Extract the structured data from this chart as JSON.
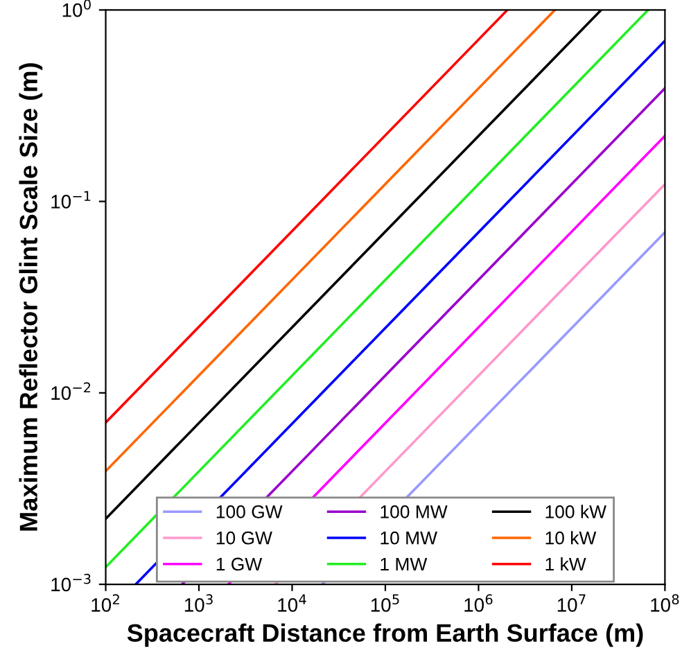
{
  "chart_data": {
    "type": "line",
    "xlabel": "Spacecraft Distance from Earth Surface (m)",
    "ylabel": "Maximum Reflector Glint Scale Size (m)",
    "log": "xy",
    "xlim": [
      100,
      100000000
    ],
    "ylim": [
      0.001,
      1
    ],
    "xticks": [
      {
        "value": 100,
        "label": "10$^{2}$"
      },
      {
        "value": 1000,
        "label": "10$^{3}$"
      },
      {
        "value": 10000,
        "label": "10$^{4}$"
      },
      {
        "value": 100000,
        "label": "10$^{5}$"
      },
      {
        "value": 1000000,
        "label": "10$^{6}$"
      },
      {
        "value": 10000000,
        "label": "10$^{7}$"
      },
      {
        "value": 100000000,
        "label": "10$^{8}$"
      }
    ],
    "yticks": [
      {
        "value": 0.001,
        "label": "10$^{−3}$"
      },
      {
        "value": 0.01,
        "label": "10$^{−2}$"
      },
      {
        "value": 0.1,
        "label": "10$^{−1}$"
      },
      {
        "value": 1,
        "label": "10$^{0}$"
      }
    ],
    "legend": "bottom",
    "grid": false,
    "marker": "none",
    "line_style": "solid",
    "series": [
      {
        "name": "100 GW",
        "color": "#9999ff",
        "x": [
          21000,
          100000000
        ],
        "values": [
          0.001,
          0.069
        ]
      },
      {
        "name": "10 GW",
        "color": "#ff99cc",
        "x": [
          6600,
          100000000
        ],
        "values": [
          0.001,
          0.123
        ]
      },
      {
        "name": "1 GW",
        "color": "#ff00ff",
        "x": [
          2070,
          100000000
        ],
        "values": [
          0.001,
          0.22
        ]
      },
      {
        "name": "100 MW",
        "color": "#9900cc",
        "x": [
          660,
          100000000
        ],
        "values": [
          0.001,
          0.39
        ]
      },
      {
        "name": "10 MW",
        "color": "#0000ff",
        "x": [
          210,
          100000000
        ],
        "values": [
          0.001,
          0.69
        ]
      },
      {
        "name": "1 MW",
        "color": "#22ee22",
        "x": [
          100,
          66000000
        ],
        "values": [
          0.00123,
          1
        ]
      },
      {
        "name": "100 kW",
        "color": "#000000",
        "x": [
          100,
          20700000
        ],
        "values": [
          0.0022,
          1
        ]
      },
      {
        "name": "10 kW",
        "color": "#ff6600",
        "x": [
          100,
          6600000
        ],
        "values": [
          0.0039,
          1
        ]
      },
      {
        "name": "1 kW",
        "color": "#ff0000",
        "x": [
          100,
          2040000
        ],
        "values": [
          0.007,
          1
        ]
      }
    ]
  }
}
